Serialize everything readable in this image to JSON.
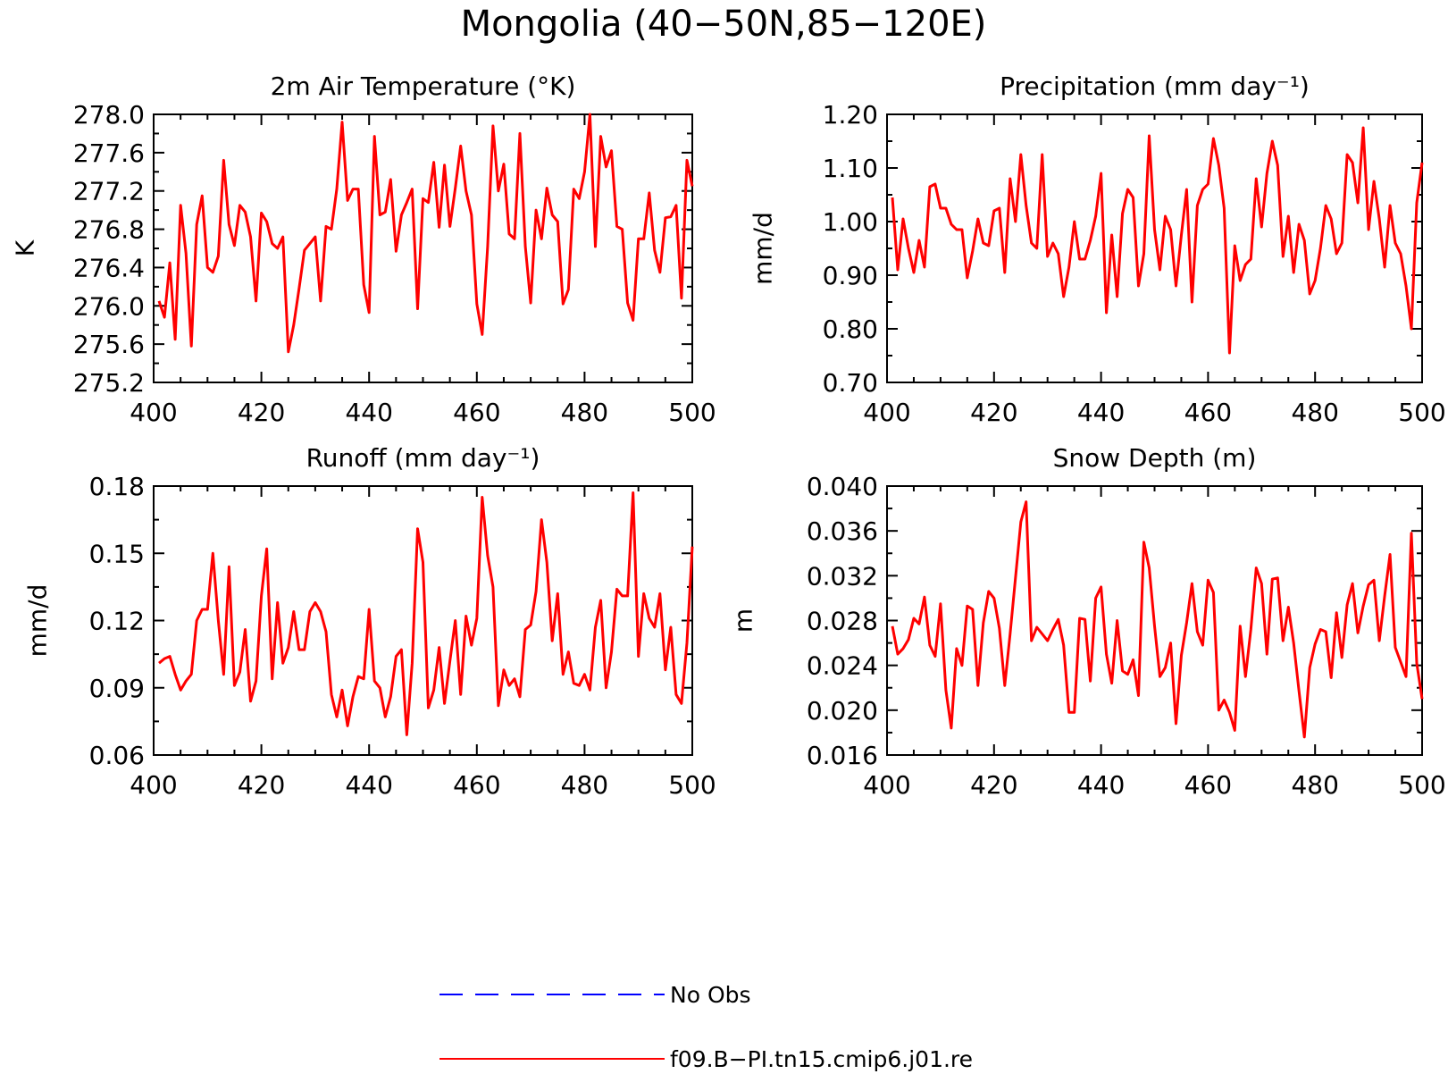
{
  "title": "Mongolia (40−50N,85−120E)",
  "legend": [
    {
      "label": "No Obs",
      "color": "#0000ff",
      "dash": true
    },
    {
      "label": "f09.B−PI.tn15.cmip6.j01.re",
      "color": "#ff0000",
      "dash": false
    }
  ],
  "chart_data": [
    {
      "type": "line",
      "title": "2m Air Temperature (°K)",
      "xlabel": "",
      "ylabel": "K",
      "xlim": [
        400,
        500
      ],
      "ylim": [
        275.2,
        278.0
      ],
      "xticks": [
        400,
        420,
        440,
        460,
        480,
        500
      ],
      "xtick_labels": [
        "400",
        "420",
        "440",
        "460",
        "480",
        "500"
      ],
      "yticks": [
        275.2,
        275.6,
        276.0,
        276.4,
        276.8,
        277.2,
        277.6,
        278.0
      ],
      "ytick_labels": [
        "275.2",
        "275.6",
        "276.0",
        "276.4",
        "276.8",
        "277.2",
        "277.6",
        "278.0"
      ],
      "x_start": 401,
      "series": [
        {
          "color": "#ff0000",
          "values": [
            276.05,
            275.88,
            276.45,
            275.65,
            277.05,
            276.55,
            275.58,
            276.85,
            277.15,
            276.4,
            276.35,
            276.52,
            277.52,
            276.85,
            276.63,
            277.05,
            276.98,
            276.72,
            276.05,
            276.97,
            276.88,
            276.65,
            276.6,
            276.72,
            275.52,
            275.8,
            276.18,
            276.58,
            276.65,
            276.72,
            276.05,
            276.83,
            276.8,
            277.22,
            277.92,
            277.1,
            277.22,
            277.22,
            276.22,
            275.93,
            277.77,
            276.95,
            276.98,
            277.32,
            276.57,
            276.95,
            277.08,
            277.22,
            275.97,
            277.12,
            277.08,
            277.5,
            276.82,
            277.47,
            276.83,
            277.23,
            277.67,
            277.2,
            276.95,
            276.02,
            275.7,
            276.62,
            277.88,
            277.2,
            277.48,
            276.75,
            276.7,
            277.8,
            276.62,
            276.03,
            277.0,
            276.7,
            277.23,
            276.95,
            276.88,
            276.02,
            276.17,
            277.22,
            277.12,
            277.4,
            278.0,
            276.62,
            277.77,
            277.45,
            277.62,
            276.83,
            276.8,
            276.03,
            275.85,
            276.7,
            276.7,
            277.18,
            276.58,
            276.35,
            276.92,
            276.93,
            277.05,
            276.08,
            277.52,
            277.25
          ]
        }
      ]
    },
    {
      "type": "line",
      "title": "Precipitation (mm day⁻¹)",
      "xlabel": "",
      "ylabel": "mm/d",
      "xlim": [
        400,
        500
      ],
      "ylim": [
        0.7,
        1.2
      ],
      "xticks": [
        400,
        420,
        440,
        460,
        480,
        500
      ],
      "xtick_labels": [
        "400",
        "420",
        "440",
        "460",
        "480",
        "500"
      ],
      "yticks": [
        0.7,
        0.8,
        0.9,
        1.0,
        1.1,
        1.2
      ],
      "ytick_labels": [
        "0.70",
        "0.80",
        "0.90",
        "1.00",
        "1.10",
        "1.20"
      ],
      "x_start": 401,
      "series": [
        {
          "color": "#ff0000",
          "values": [
            1.045,
            0.91,
            1.005,
            0.95,
            0.905,
            0.965,
            0.915,
            1.065,
            1.07,
            1.025,
            1.025,
            0.995,
            0.985,
            0.985,
            0.895,
            0.945,
            1.005,
            0.96,
            0.955,
            1.02,
            1.025,
            0.905,
            1.08,
            1.0,
            1.125,
            1.03,
            0.96,
            0.95,
            1.125,
            0.935,
            0.96,
            0.94,
            0.86,
            0.915,
            1.0,
            0.93,
            0.93,
            0.965,
            1.01,
            1.09,
            0.83,
            0.975,
            0.86,
            1.015,
            1.06,
            1.045,
            0.88,
            0.94,
            1.16,
            0.985,
            0.91,
            1.01,
            0.985,
            0.88,
            0.975,
            1.06,
            0.85,
            1.03,
            1.06,
            1.07,
            1.155,
            1.105,
            1.025,
            0.755,
            0.955,
            0.89,
            0.92,
            0.93,
            1.08,
            0.99,
            1.09,
            1.15,
            1.105,
            0.935,
            1.01,
            0.905,
            0.995,
            0.965,
            0.865,
            0.89,
            0.95,
            1.03,
            1.005,
            0.94,
            0.96,
            1.125,
            1.11,
            1.035,
            1.175,
            0.985,
            1.075,
            1.005,
            0.915,
            1.03,
            0.96,
            0.94,
            0.88,
            0.8,
            1.035,
            1.11
          ]
        }
      ]
    },
    {
      "type": "line",
      "title": "Runoff (mm day⁻¹)",
      "xlabel": "",
      "ylabel": "mm/d",
      "xlim": [
        400,
        500
      ],
      "ylim": [
        0.06,
        0.18
      ],
      "xticks": [
        400,
        420,
        440,
        460,
        480,
        500
      ],
      "xtick_labels": [
        "400",
        "420",
        "440",
        "460",
        "480",
        "500"
      ],
      "yticks": [
        0.06,
        0.09,
        0.12,
        0.15,
        0.18
      ],
      "ytick_labels": [
        "0.06",
        "0.09",
        "0.12",
        "0.15",
        "0.18"
      ],
      "x_start": 401,
      "series": [
        {
          "color": "#ff0000",
          "values": [
            0.101,
            0.103,
            0.104,
            0.096,
            0.089,
            0.093,
            0.096,
            0.12,
            0.125,
            0.125,
            0.15,
            0.12,
            0.096,
            0.144,
            0.091,
            0.097,
            0.116,
            0.084,
            0.093,
            0.131,
            0.152,
            0.094,
            0.128,
            0.101,
            0.108,
            0.124,
            0.107,
            0.107,
            0.124,
            0.128,
            0.124,
            0.115,
            0.087,
            0.077,
            0.089,
            0.073,
            0.086,
            0.095,
            0.094,
            0.125,
            0.093,
            0.09,
            0.077,
            0.086,
            0.104,
            0.107,
            0.069,
            0.101,
            0.161,
            0.146,
            0.081,
            0.089,
            0.108,
            0.083,
            0.102,
            0.12,
            0.087,
            0.122,
            0.109,
            0.121,
            0.175,
            0.149,
            0.135,
            0.082,
            0.098,
            0.091,
            0.094,
            0.086,
            0.116,
            0.118,
            0.133,
            0.165,
            0.146,
            0.111,
            0.132,
            0.096,
            0.106,
            0.092,
            0.091,
            0.096,
            0.089,
            0.117,
            0.129,
            0.09,
            0.106,
            0.134,
            0.131,
            0.131,
            0.177,
            0.104,
            0.132,
            0.121,
            0.117,
            0.132,
            0.098,
            0.117,
            0.087,
            0.083,
            0.11,
            0.153
          ]
        }
      ]
    },
    {
      "type": "line",
      "title": "Snow Depth (m)",
      "xlabel": "",
      "ylabel": "m",
      "xlim": [
        400,
        500
      ],
      "ylim": [
        0.016,
        0.04
      ],
      "xticks": [
        400,
        420,
        440,
        460,
        480,
        500
      ],
      "xtick_labels": [
        "400",
        "420",
        "440",
        "460",
        "480",
        "500"
      ],
      "yticks": [
        0.016,
        0.02,
        0.024,
        0.028,
        0.032,
        0.036,
        0.04
      ],
      "ytick_labels": [
        "0.016",
        "0.020",
        "0.024",
        "0.028",
        "0.032",
        "0.036",
        "0.040"
      ],
      "x_start": 401,
      "series": [
        {
          "color": "#ff0000",
          "values": [
            0.0275,
            0.025,
            0.0255,
            0.0263,
            0.0282,
            0.0277,
            0.0301,
            0.0258,
            0.0248,
            0.0295,
            0.0218,
            0.0184,
            0.0255,
            0.024,
            0.0293,
            0.029,
            0.0222,
            0.0278,
            0.0306,
            0.03,
            0.0273,
            0.0222,
            0.0268,
            0.0318,
            0.0368,
            0.0386,
            0.0262,
            0.0274,
            0.0268,
            0.0262,
            0.0272,
            0.0281,
            0.0258,
            0.0198,
            0.0198,
            0.0282,
            0.0281,
            0.0226,
            0.03,
            0.031,
            0.025,
            0.0224,
            0.028,
            0.0235,
            0.0232,
            0.0245,
            0.0213,
            0.035,
            0.0327,
            0.0275,
            0.023,
            0.0238,
            0.026,
            0.0188,
            0.0249,
            0.0278,
            0.0313,
            0.027,
            0.0258,
            0.0316,
            0.0305,
            0.02,
            0.0209,
            0.0198,
            0.0182,
            0.0275,
            0.023,
            0.0272,
            0.0327,
            0.0313,
            0.025,
            0.0317,
            0.0318,
            0.0262,
            0.0292,
            0.026,
            0.0217,
            0.0176,
            0.0238,
            0.0259,
            0.0272,
            0.027,
            0.0229,
            0.0287,
            0.0247,
            0.0294,
            0.0313,
            0.0269,
            0.0293,
            0.0312,
            0.0316,
            0.0262,
            0.0302,
            0.0339,
            0.0256,
            0.0243,
            0.023,
            0.0358,
            0.0242,
            0.021
          ]
        }
      ]
    }
  ]
}
